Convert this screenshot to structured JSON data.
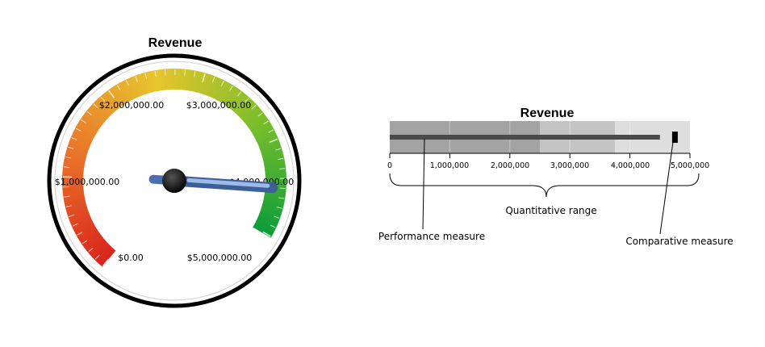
{
  "chart_data": [
    {
      "type": "gauge",
      "title": "Revenue",
      "min": 0,
      "max": 5000000,
      "value": 4500000,
      "tick_labels": [
        "$0.00",
        "$1,000,000.00",
        "$2,000,000.00",
        "$3,000,000.00",
        "$4,000,000.00",
        "$5,000,000.00"
      ],
      "tick_values": [
        0,
        1000000,
        2000000,
        3000000,
        4000000,
        5000000
      ],
      "color_scale": [
        "#d9261c",
        "#e8742a",
        "#e8c52d",
        "#7cbf2a",
        "#0f9d3a"
      ]
    },
    {
      "type": "bullet",
      "title": "Revenue",
      "min": 0,
      "max": 5000000,
      "performance_value": 4500000,
      "comparative_value": 4750000,
      "qualitative_ranges": [
        {
          "to": 2500000,
          "color": "#a3a3a3"
        },
        {
          "to": 3750000,
          "color": "#c4c4c4"
        },
        {
          "to": 5000000,
          "color": "#dedede"
        }
      ],
      "tick_labels": [
        "0",
        "1,000,000",
        "2,000,000",
        "3,000,000",
        "4,000,000",
        "5,000,000"
      ],
      "tick_values": [
        0,
        1000000,
        2000000,
        3000000,
        4000000,
        5000000
      ],
      "annotations": {
        "performance": "Performance measure",
        "range": "Quantitative range",
        "comparative": "Comparative measure"
      }
    }
  ]
}
